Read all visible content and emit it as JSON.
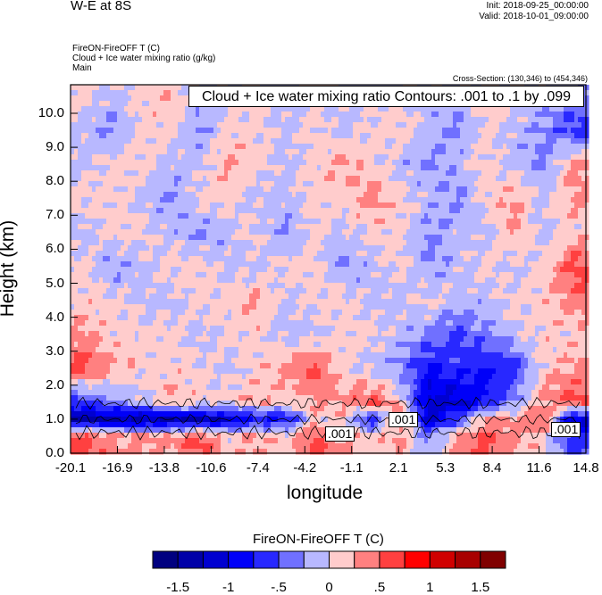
{
  "header": {
    "title": "W-E at 8S",
    "init": "Init: 2018-09-25_00:00:00",
    "valid": "Valid: 2018-10-01_09:00:00",
    "field1": "FireON-FireOFF T   (C)",
    "field2": "Cloud + Ice water mixing ratio   (g/kg)",
    "field3": "Main",
    "cross_section": "Cross-Section: (130,346) to (454,346)"
  },
  "chart_data": {
    "type": "heatmap",
    "title": "Cloud + Ice water mixing ratio Contours: .001 to .1 by .099",
    "xlabel": "longitude",
    "ylabel": "Height (km)",
    "xlim": [
      -20.1,
      14.8
    ],
    "ylim": [
      0,
      10.84
    ],
    "x_ticks": [
      "-20.1",
      "-16.9",
      "-13.8",
      "-10.6",
      "-7.4",
      "-4.2",
      "-1.1",
      "2.1",
      "5.3",
      "8.4",
      "11.6",
      "14.8"
    ],
    "y_ticks": [
      "0.0",
      "1.0",
      "2.0",
      "3.0",
      "4.0",
      "5.0",
      "6.0",
      "7.0",
      "8.0",
      "9.0",
      "10.0"
    ],
    "contour_labels": [
      ".001",
      ".001",
      ".001"
    ],
    "heights": [
      10.5,
      9.5,
      8.5,
      7.5,
      6.5,
      5.5,
      4.5,
      3.5,
      2.5,
      1.5,
      1.0,
      0.5
    ],
    "values": [
      [
        0.1,
        -0.1,
        0.1,
        0.2,
        -0.1,
        -0.1,
        0.1,
        -0.1,
        0.1,
        -0.1,
        -0.1,
        0.1,
        -0.1,
        -0.1,
        0.1,
        0.1,
        -0.1,
        -0.3
      ],
      [
        -0.1,
        -0.3,
        0.1,
        0.1,
        -0.3,
        0.1,
        0.1,
        -0.1,
        0.1,
        -0.1,
        0.1,
        0.1,
        -0.1,
        -0.3,
        0.1,
        -0.1,
        -0.3,
        -0.6
      ],
      [
        -0.1,
        0.1,
        0.1,
        -0.1,
        -0.1,
        0.3,
        0.1,
        -0.1,
        0.1,
        0.3,
        0.1,
        -0.1,
        -0.3,
        -0.1,
        0.1,
        -0.1,
        -0.3,
        0.3
      ],
      [
        0.1,
        0.1,
        -0.1,
        -0.3,
        0.1,
        0.1,
        -0.1,
        -0.1,
        0.1,
        0.1,
        0.4,
        0.1,
        -0.1,
        -0.3,
        0.1,
        0.3,
        -0.1,
        0.3
      ],
      [
        -0.1,
        0.1,
        0.1,
        -0.1,
        -0.3,
        -0.1,
        0.1,
        -0.3,
        0.1,
        -0.1,
        0.1,
        0.1,
        -0.3,
        -0.1,
        -0.1,
        0.3,
        -0.1,
        0.1
      ],
      [
        0.1,
        -0.3,
        -0.1,
        0.1,
        0.1,
        -0.1,
        -0.1,
        0.1,
        0.1,
        -0.3,
        -0.1,
        0.1,
        -0.3,
        -0.1,
        0.1,
        -0.1,
        0.1,
        0.6
      ],
      [
        0.1,
        0.1,
        -0.1,
        -0.1,
        0.1,
        0.1,
        0.3,
        -0.1,
        0.1,
        0.1,
        -0.1,
        -0.1,
        0.1,
        -0.1,
        -0.1,
        0.1,
        0.1,
        0.4
      ],
      [
        0.3,
        0.1,
        0.1,
        0.1,
        -0.1,
        0.1,
        0.1,
        -0.1,
        -0.1,
        0.1,
        0.1,
        -0.1,
        -0.3,
        -0.6,
        -0.3,
        -0.1,
        0.1,
        0.1
      ],
      [
        0.6,
        0.3,
        0.1,
        0.1,
        0.1,
        -0.1,
        0.1,
        0.3,
        0.6,
        0.1,
        -0.1,
        -0.3,
        -0.8,
        -0.6,
        -0.8,
        -0.6,
        0.1,
        0.3
      ],
      [
        -0.6,
        -0.3,
        -0.1,
        0.3,
        0.1,
        0.1,
        0.3,
        0.1,
        0.3,
        0.3,
        0.6,
        0.1,
        -1.1,
        -1.1,
        -0.8,
        -0.3,
        0.3,
        0.6
      ],
      [
        -1.3,
        -1.3,
        -1.3,
        -1.3,
        -1.3,
        -1.1,
        -0.8,
        -0.8,
        0.1,
        0.1,
        -0.8,
        0.6,
        -1.1,
        -0.6,
        0.3,
        0.3,
        0.6,
        -1.1
      ],
      [
        0.6,
        0.3,
        0.3,
        0.3,
        0.6,
        0.1,
        0.3,
        0.1,
        0.6,
        0.3,
        0.1,
        0.3,
        -0.3,
        0.3,
        0.6,
        0.3,
        0.1,
        -0.6
      ]
    ],
    "colorbar": {
      "title": "FireON-FireOFF T  (C)",
      "levels": [
        -1.5,
        -1.25,
        -1,
        -0.75,
        -0.5,
        -0.25,
        0,
        0.25,
        0.5,
        0.75,
        1,
        1.25,
        1.5
      ],
      "labels": [
        "-1.5",
        "-1",
        "-.5",
        "0",
        ".5",
        "1",
        "1.5"
      ],
      "colors": [
        "#000080",
        "#0000a8",
        "#0000d0",
        "#0000f8",
        "#2828ff",
        "#7070ff",
        "#b8b8ff",
        "#ffcccc",
        "#ff8080",
        "#ff4040",
        "#ff0000",
        "#d00000",
        "#a80000",
        "#800000"
      ]
    }
  }
}
